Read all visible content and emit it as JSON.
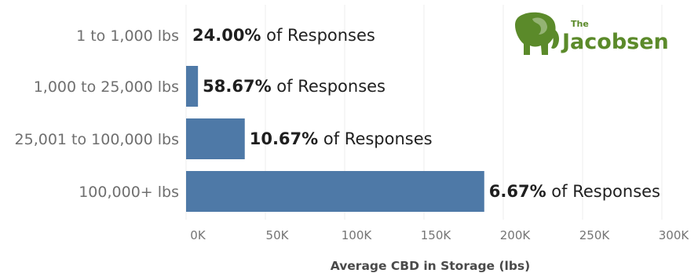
{
  "chart_data": {
    "type": "bar",
    "orientation": "horizontal",
    "categories": [
      "1 to 1,000 lbs",
      "1,000 to 25,000 lbs",
      "25,001 to 100,000 lbs",
      "100,000+ lbs"
    ],
    "values": [
      500,
      7500,
      37000,
      188000
    ],
    "data_labels": [
      {
        "pct": "24.00%",
        "suffix": " of Responses"
      },
      {
        "pct": "58.67%",
        "suffix": " of Responses"
      },
      {
        "pct": "10.67%",
        "suffix": " of Responses"
      },
      {
        "pct": "6.67%",
        "suffix": " of Responses"
      }
    ],
    "xlabel": "Average CBD in Storage (lbs)",
    "xlim": [
      0,
      310000
    ],
    "xticks": [
      0,
      50000,
      100000,
      150000,
      200000,
      250000,
      300000
    ],
    "xtick_labels": [
      "0K",
      "50K",
      "100K",
      "150K",
      "200K",
      "250K",
      "300K"
    ],
    "grid": true,
    "bar_color": "#4e79a7"
  },
  "logo": {
    "small_text": "The",
    "word": "Jacobsen",
    "color": "#5b8a2a",
    "icon": "elephant-icon"
  }
}
